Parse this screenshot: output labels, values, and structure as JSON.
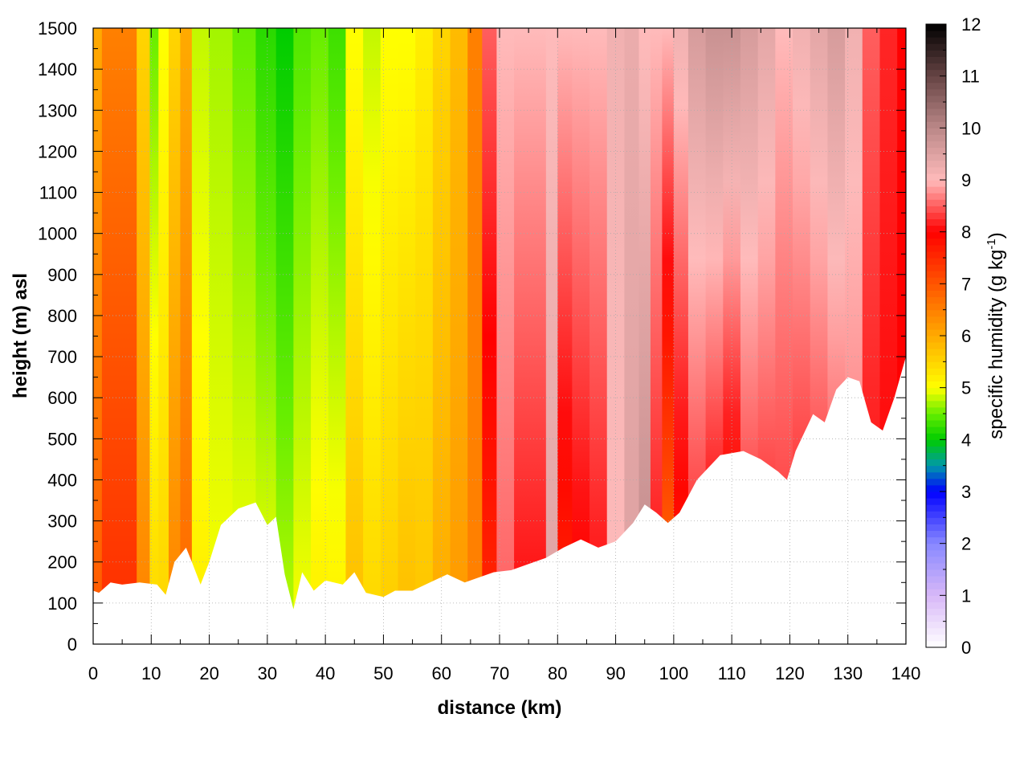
{
  "chart_data": {
    "type": "heatmap",
    "subtype": "vertical cross-section (filled contours)",
    "xlabel": "distance (km)",
    "ylabel": "height (m) asl",
    "colorbar_label": "specific humidity (g kg",
    "colorbar_label_sup": "-1",
    "colorbar_label_tail": ")",
    "xlim": [
      0,
      140
    ],
    "ylim": [
      0,
      1500
    ],
    "clim": [
      0,
      12
    ],
    "x_ticks": [
      0,
      10,
      20,
      30,
      40,
      50,
      60,
      70,
      80,
      90,
      100,
      110,
      120,
      130,
      140
    ],
    "y_ticks": [
      0,
      100,
      200,
      300,
      400,
      500,
      600,
      700,
      800,
      900,
      1000,
      1100,
      1200,
      1300,
      1400,
      1500
    ],
    "colorbar_ticks": [
      0,
      1,
      2,
      3,
      4,
      5,
      6,
      7,
      8,
      9,
      10,
      11,
      12
    ],
    "grid": true,
    "colormap": [
      [
        0,
        "#ffffff"
      ],
      [
        1,
        "#d8b8f8"
      ],
      [
        2,
        "#8888ff"
      ],
      [
        3,
        "#0000ff"
      ],
      [
        3.5,
        "#0099aa"
      ],
      [
        4,
        "#00cc00"
      ],
      [
        4.5,
        "#66ee00"
      ],
      [
        5,
        "#ffff00"
      ],
      [
        6,
        "#ffaa00"
      ],
      [
        7,
        "#ff5500"
      ],
      [
        8,
        "#ff0000"
      ],
      [
        9,
        "#ffbbbb"
      ],
      [
        10,
        "#bb8888"
      ],
      [
        11,
        "#664444"
      ],
      [
        12,
        "#000000"
      ]
    ],
    "terrain_profile": {
      "x": [
        0,
        1,
        3,
        5,
        8,
        11,
        12.5,
        14,
        16,
        17,
        18.5,
        20,
        22,
        25,
        28,
        30,
        31.5,
        33,
        34.5,
        36,
        38,
        40,
        43,
        45,
        47,
        50,
        52,
        55,
        58,
        61,
        64,
        66,
        69,
        72,
        75,
        78,
        81,
        84,
        87,
        90,
        93,
        95,
        97,
        99,
        101,
        104,
        108,
        112,
        115,
        118,
        119.5,
        121,
        124,
        126,
        128,
        130,
        132,
        134,
        136,
        138,
        140
      ],
      "y": [
        130,
        125,
        150,
        145,
        150,
        145,
        120,
        200,
        235,
        200,
        145,
        200,
        290,
        330,
        345,
        290,
        310,
        170,
        85,
        175,
        130,
        155,
        145,
        175,
        125,
        115,
        130,
        130,
        150,
        170,
        150,
        160,
        175,
        180,
        195,
        210,
        235,
        255,
        235,
        250,
        295,
        340,
        320,
        295,
        320,
        400,
        460,
        470,
        450,
        420,
        400,
        470,
        560,
        540,
        620,
        650,
        640,
        540,
        520,
        600,
        700
      ]
    },
    "humidity_profiles": [
      {
        "x": 0,
        "q_bottom": 7.0,
        "q_top": 6.0
      },
      {
        "x": 3,
        "q_bottom": 7.5,
        "q_top": 6.5
      },
      {
        "x": 6,
        "q_bottom": 7.5,
        "q_top": 6.5
      },
      {
        "x": 9,
        "q_bottom": 6.5,
        "q_top": 5.5
      },
      {
        "x": 10.5,
        "q_bottom": 5.5,
        "q_top": 4.5
      },
      {
        "x": 12,
        "q_bottom": 5.5,
        "q_top": 5.0
      },
      {
        "x": 14,
        "q_bottom": 6.5,
        "q_top": 5.5
      },
      {
        "x": 16,
        "q_bottom": 6.8,
        "q_top": 6.0
      },
      {
        "x": 18,
        "q_bottom": 5.2,
        "q_top": 4.8
      },
      {
        "x": 22,
        "q_bottom": 5.0,
        "q_top": 4.7
      },
      {
        "x": 26,
        "q_bottom": 5.0,
        "q_top": 4.5
      },
      {
        "x": 30,
        "q_bottom": 5.0,
        "q_top": 4.2
      },
      {
        "x": 33,
        "q_bottom": 4.8,
        "q_top": 4.0
      },
      {
        "x": 36,
        "q_bottom": 5.0,
        "q_top": 4.4
      },
      {
        "x": 39,
        "q_bottom": 5.2,
        "q_top": 4.5
      },
      {
        "x": 42,
        "q_bottom": 5.2,
        "q_top": 4.3
      },
      {
        "x": 45,
        "q_bottom": 5.8,
        "q_top": 5.0
      },
      {
        "x": 48,
        "q_bottom": 5.5,
        "q_top": 4.8
      },
      {
        "x": 51,
        "q_bottom": 5.6,
        "q_top": 5.0
      },
      {
        "x": 54,
        "q_bottom": 5.8,
        "q_top": 5.0
      },
      {
        "x": 57,
        "q_bottom": 5.7,
        "q_top": 5.2
      },
      {
        "x": 60,
        "q_bottom": 6.0,
        "q_top": 5.5
      },
      {
        "x": 63,
        "q_bottom": 6.2,
        "q_top": 5.8
      },
      {
        "x": 66,
        "q_bottom": 6.5,
        "q_top": 6.5
      },
      {
        "x": 68,
        "q_bottom": 7.5,
        "q_top": 8.5
      },
      {
        "x": 71,
        "q_bottom": 8.5,
        "q_top": 9.0
      },
      {
        "x": 74,
        "q_bottom": 8.0,
        "q_top": 9.0
      },
      {
        "x": 77,
        "q_bottom": 8.0,
        "q_top": 9.0
      },
      {
        "x": 79,
        "q_bottom": 9.5,
        "q_top": 9.0
      },
      {
        "x": 81,
        "q_bottom": 7.5,
        "q_top": 9.0
      },
      {
        "x": 84,
        "q_bottom": 7.8,
        "q_top": 9.0
      },
      {
        "x": 87,
        "q_bottom": 8.0,
        "q_top": 9.0
      },
      {
        "x": 90,
        "q_bottom": 9.0,
        "q_top": 9.2
      },
      {
        "x": 93,
        "q_bottom": 9.5,
        "q_top": 9.3
      },
      {
        "x": 95,
        "q_bottom": 10.0,
        "q_top": 9.0
      },
      {
        "x": 97,
        "q_bottom": 8.0,
        "q_top": 9.0
      },
      {
        "x": 99,
        "q_bottom": 6.5,
        "q_top": 9.0
      },
      {
        "x": 101,
        "q_bottom": 7.5,
        "q_top": 9.2
      },
      {
        "x": 104,
        "q_bottom": 8.0,
        "q_top": 9.6
      },
      {
        "x": 107,
        "q_bottom": 7.6,
        "q_top": 9.8
      },
      {
        "x": 110,
        "q_bottom": 7.2,
        "q_top": 9.8
      },
      {
        "x": 113,
        "q_bottom": 8.0,
        "q_top": 9.6
      },
      {
        "x": 116,
        "q_bottom": 8.0,
        "q_top": 9.4
      },
      {
        "x": 119,
        "q_bottom": 8.2,
        "q_top": 9.0
      },
      {
        "x": 122,
        "q_bottom": 8.0,
        "q_top": 9.2
      },
      {
        "x": 125,
        "q_bottom": 8.0,
        "q_top": 9.4
      },
      {
        "x": 128,
        "q_bottom": 8.1,
        "q_top": 9.6
      },
      {
        "x": 131,
        "q_bottom": 8.5,
        "q_top": 9.2
      },
      {
        "x": 134,
        "q_bottom": 8.0,
        "q_top": 8.5
      },
      {
        "x": 137,
        "q_bottom": 8.0,
        "q_top": 8.2
      },
      {
        "x": 140,
        "q_bottom": 8.0,
        "q_top": 8.0
      }
    ]
  }
}
